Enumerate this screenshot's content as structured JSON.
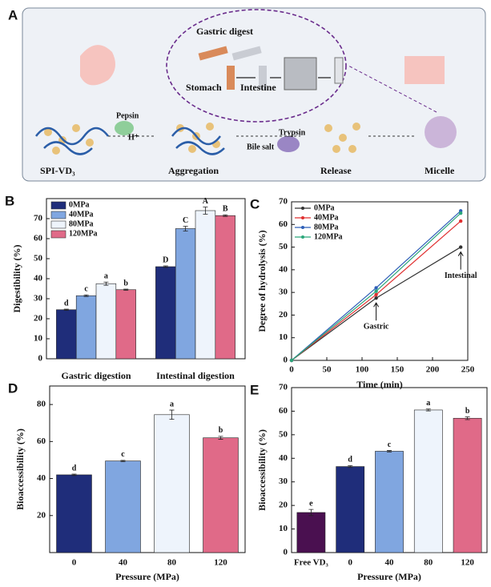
{
  "diagram": {
    "label": "A",
    "title": "Gastric digest",
    "stomach": "Stomach",
    "intestine": "Intestine",
    "pepsin": "Pepsin",
    "proton": "H⁺",
    "bile": "Bile salt",
    "trypsin": "Trypsin",
    "steps": [
      "SPI-VD₃",
      "Aggregation",
      "Release",
      "Micelle"
    ]
  },
  "chart_data": [
    {
      "type": "bar",
      "panel": "B",
      "categories": [
        "Gastric digestion",
        "Intestinal digestion"
      ],
      "series": [
        {
          "name": "0MPa",
          "color": "#1f2d7a",
          "values": [
            24.5,
            46
          ],
          "errors": [
            0.3,
            0.4
          ],
          "letters": [
            "d",
            "D"
          ]
        },
        {
          "name": "40MPa",
          "color": "#80a6e0",
          "values": [
            31.5,
            65
          ],
          "errors": [
            0.4,
            1.2
          ],
          "letters": [
            "c",
            "C"
          ]
        },
        {
          "name": "80MPa",
          "color": "#eef4fc",
          "values": [
            37.5,
            74
          ],
          "errors": [
            0.8,
            1.8
          ],
          "letters": [
            "a",
            "A"
          ]
        },
        {
          "name": "120MPa",
          "color": "#e06a88",
          "values": [
            34.5,
            71.5
          ],
          "errors": [
            0.3,
            0.4
          ],
          "letters": [
            "b",
            "B"
          ]
        }
      ],
      "ylabel": "Digestibility (%)",
      "ylim": [
        0,
        80
      ],
      "yticks": [
        0,
        10,
        20,
        30,
        40,
        50,
        60,
        70
      ],
      "legend": "upper left"
    },
    {
      "type": "line",
      "panel": "C",
      "x": [
        0,
        120,
        240
      ],
      "series": [
        {
          "name": "0MPa",
          "color": "#333333",
          "values": [
            0,
            27.5,
            50
          ]
        },
        {
          "name": "40MPa",
          "color": "#e03030",
          "values": [
            0,
            29,
            61.5
          ]
        },
        {
          "name": "80MPa",
          "color": "#2f5fb8",
          "values": [
            0,
            32,
            66
          ]
        },
        {
          "name": "120MPa",
          "color": "#2aa67a",
          "values": [
            0,
            30.5,
            65
          ]
        }
      ],
      "annotations": [
        "Gastric",
        "Intestinal"
      ],
      "xlabel": "Time (min)",
      "ylabel": "Degree of hydrolysis (%)",
      "xlim": [
        0,
        250
      ],
      "xticks": [
        0,
        50,
        100,
        150,
        200,
        250
      ],
      "ylim": [
        0,
        70
      ],
      "yticks": [
        0,
        10,
        20,
        30,
        40,
        50,
        60,
        70
      ],
      "legend": "upper left"
    },
    {
      "type": "bar",
      "panel": "D",
      "categories": [
        "0",
        "40",
        "80",
        "120"
      ],
      "values": [
        42,
        49.5,
        74.5,
        62
      ],
      "errors": [
        0.4,
        0.3,
        2.5,
        0.8
      ],
      "letters": [
        "d",
        "c",
        "a",
        "b"
      ],
      "colors": [
        "#1f2d7a",
        "#80a6e0",
        "#eef4fc",
        "#e06a88"
      ],
      "xlabel": "Pressure (MPa)",
      "ylabel": "Bioaccessibility (%)",
      "ylim": [
        0,
        90
      ],
      "yticks": [
        20,
        40,
        60,
        80
      ]
    },
    {
      "type": "bar",
      "panel": "E",
      "categories": [
        "Free VD₃",
        "0",
        "40",
        "80",
        "120"
      ],
      "values": [
        17,
        36.5,
        43,
        60.5,
        57
      ],
      "errors": [
        1.3,
        0.4,
        0.3,
        0.4,
        0.6
      ],
      "letters": [
        "e",
        "d",
        "c",
        "a",
        "b"
      ],
      "colors": [
        "#4a1050",
        "#1f2d7a",
        "#80a6e0",
        "#eef4fc",
        "#e06a88"
      ],
      "xlabel": "Pressure (MPa)",
      "ylabel": "Bioaccessibility (%)",
      "ylim": [
        0,
        70
      ],
      "yticks": [
        0,
        10,
        20,
        30,
        40,
        50,
        60,
        70
      ]
    }
  ]
}
